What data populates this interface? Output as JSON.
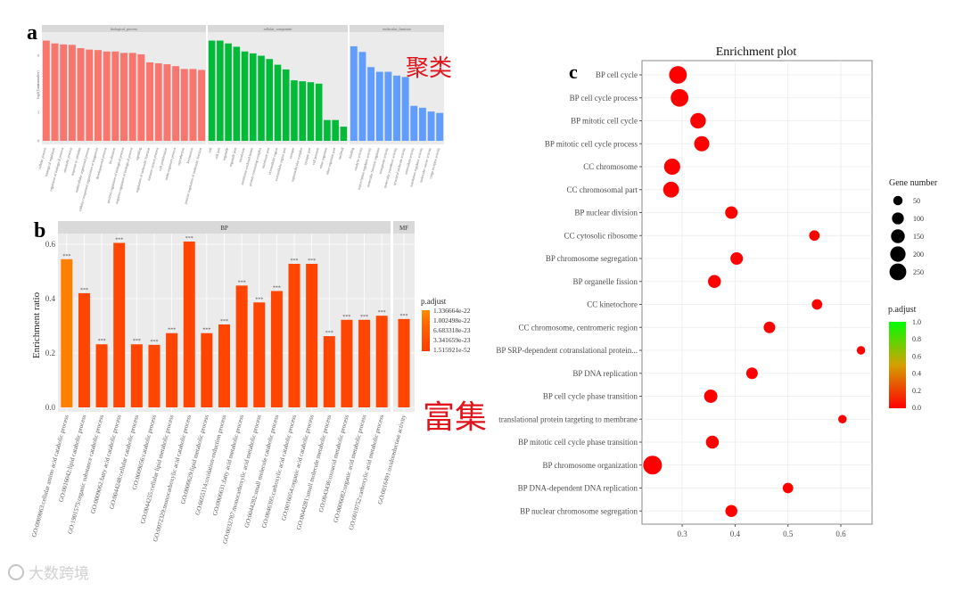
{
  "annotations": {
    "panel_a_letter": "a",
    "panel_b_letter": "b",
    "panel_c_letter": "c",
    "cluster_label": "聚类",
    "enrichment_label": "富集",
    "watermark": "大数跨境"
  },
  "chart_data": [
    {
      "type": "bar",
      "panel": "a",
      "title": "",
      "xlabel": "",
      "ylabel": "log2(Gene number)",
      "yticks": [
        0,
        3,
        6,
        9
      ],
      "ylim": [
        0,
        11.5
      ],
      "facets": [
        {
          "name": "biological_process",
          "color": "#f8766d",
          "categories": [
            "cellular process",
            "biological regulation",
            "regulation of biological process",
            "metabolic process",
            "response to stimulus",
            "multicellular organismal process",
            "cellular component organization or biogenesis",
            "developmental process",
            "localization",
            "positive regulation of biological process",
            "negative regulation of biological process",
            "signaling",
            "regulation of molecular function",
            "immune system process",
            "cell proliferation",
            "multi-organism process",
            "reproduction",
            "locomotion",
            "positive regulation of molecular function"
          ],
          "values": [
            10.6,
            10.3,
            10.2,
            10.15,
            9.8,
            9.65,
            9.6,
            9.45,
            9.45,
            9.3,
            9.3,
            9.15,
            8.3,
            8.2,
            8.1,
            7.9,
            7.6,
            7.6,
            7.5
          ]
        },
        {
          "name": "cellular_component",
          "color": "#00ba38",
          "categories": [
            "cell",
            "cell part",
            "organelle",
            "organelle part",
            "membrane",
            "membrane-enclosed lumen",
            "protein-containing complex",
            "membrane part",
            "extracellular region",
            "extracellular region part",
            "synapse",
            "supramolecular complex",
            "synapse part",
            "cell junction",
            "other organism",
            "other organism part",
            "nucleoid"
          ],
          "values": [
            10.6,
            10.6,
            10.3,
            9.95,
            9.45,
            9.25,
            9.0,
            8.65,
            8.05,
            7.55,
            6.4,
            6.3,
            6.2,
            6.05,
            2.2,
            2.2,
            1.5
          ]
        },
        {
          "name": "molecular_function",
          "color": "#619cff",
          "categories": [
            "binding",
            "catalytic activity",
            "transcription regulator activity",
            "molecular function regulator",
            "transporter activity",
            "molecular transducer activity",
            "structural molecule activity",
            "antioxidant activity",
            "translation regulator activity",
            "molecular carrier activity",
            "cargo receptor activity"
          ],
          "values": [
            10.0,
            9.4,
            7.8,
            7.3,
            7.3,
            6.9,
            6.75,
            3.7,
            3.5,
            3.1,
            2.95
          ]
        }
      ]
    },
    {
      "type": "bar",
      "panel": "b",
      "title": "",
      "xlabel": "",
      "ylabel": "Enrichment ratio",
      "yticks": [
        0.0,
        0.2,
        0.4,
        0.6
      ],
      "ylim": [
        0,
        0.64
      ],
      "bar_label": "***",
      "legend": {
        "title": "p.adjust",
        "position": "right",
        "labels": [
          "1.336664e-22",
          "1.002498e-22",
          "6.683318e-23",
          "3.341659e-23",
          "1.515921e-52"
        ],
        "colors": [
          "#ff8c00",
          "#ff7000",
          "#ff5a00",
          "#ff4a00",
          "#ff3d00"
        ]
      },
      "facets": [
        {
          "name": "BP",
          "categories": [
            "GO:0009063:cellular amino acid catabolic process",
            "GO:0016042:lipid catabolic process",
            "GO:1901575:organic substance catabolic process",
            "GO:0009062:fatty acid catabolic process",
            "GO:0044248:cellular catabolic process",
            "GO:0009056:catabolic process",
            "GO:0044255:cellular lipid metabolic process",
            "GO:0072329:monocarboxylic acid catabolic process",
            "GO:0006629:lipid metabolic process",
            "GO:0055114:oxidation-reduction process",
            "GO:0006631:fatty acid metabolic process",
            "GO:0032787:monocarboxylic acid metabolic process",
            "GO:0044282:small molecule catabolic process",
            "GO:0046395:carboxylic acid catabolic process",
            "GO:0016054:organic acid catabolic process",
            "GO:0044281:small molecule metabolic process",
            "GO:0043436:oxoacid metabolic process",
            "GO:0006082:organic acid metabolic process",
            "GO:0019752:carboxylic acid metabolic process"
          ],
          "values": [
            0.545,
            0.42,
            0.232,
            0.605,
            0.232,
            0.23,
            0.273,
            0.61,
            0.273,
            0.305,
            0.448,
            0.386,
            0.428,
            0.528,
            0.528,
            0.262,
            0.322,
            0.322,
            0.337
          ],
          "colors": [
            "#ff8000",
            "#ff4500",
            "#ff4500",
            "#ff4500",
            "#ff4500",
            "#ff4500",
            "#ff4500",
            "#ff4500",
            "#ff4500",
            "#ff4500",
            "#ff4500",
            "#ff4500",
            "#ff4500",
            "#ff4500",
            "#ff4500",
            "#ff4500",
            "#ff4500",
            "#ff4500",
            "#ff4500"
          ]
        },
        {
          "name": "MF",
          "categories": [
            "GO:0016491:oxidoreductase activity"
          ],
          "values": [
            0.325
          ],
          "colors": [
            "#ff4500"
          ]
        }
      ]
    },
    {
      "type": "scatter",
      "panel": "c",
      "title": "Enrichment plot",
      "xlabel": "",
      "ylabel": "",
      "xticks": [
        0.3,
        0.4,
        0.5,
        0.6
      ],
      "xlim": [
        0.224,
        0.659
      ],
      "grid": true,
      "categories": [
        "BP cell cycle",
        "BP cell cycle process",
        "BP mitotic cell cycle",
        "BP mitotic cell cycle process",
        "CC chromosome",
        "CC chromosomal part",
        "BP nuclear division",
        "CC cytosolic ribosome",
        "BP chromosome segregation",
        "BP organelle fission",
        "CC kinetochore",
        "CC chromosome, centromeric region",
        "BP SRP-dependent cotranslational protein...",
        "BP DNA replication",
        "BP cell cycle phase transition",
        "translational protein targeting to membrane",
        "BP mitotic cell cycle phase transition",
        "BP chromosome organization",
        "BP DNA-dependent DNA replication",
        "BP nuclear chromosome segregation"
      ],
      "x": [
        0.292,
        0.295,
        0.33,
        0.337,
        0.281,
        0.279,
        0.393,
        0.55,
        0.403,
        0.361,
        0.555,
        0.465,
        0.638,
        0.432,
        0.354,
        0.603,
        0.357,
        0.244,
        0.5,
        0.393
      ],
      "gene_number": [
        250,
        250,
        180,
        170,
        200,
        190,
        100,
        60,
        100,
        110,
        60,
        80,
        30,
        80,
        120,
        30,
        110,
        290,
        60,
        90
      ],
      "p_adjust": [
        0,
        0,
        0,
        0,
        0,
        0,
        0,
        0,
        0,
        0,
        0,
        0,
        0,
        0,
        0,
        0,
        0,
        0,
        0,
        0
      ],
      "point_color": "#ff0000",
      "size_legend": {
        "title": "Gene number",
        "values": [
          50,
          100,
          150,
          200,
          250
        ],
        "labels": [
          "50",
          "100",
          "150",
          "200",
          "250"
        ]
      },
      "color_legend": {
        "title": "p.adjust",
        "labels": [
          "1.0",
          "0.8",
          "0.6",
          "0.4",
          "0.2",
          "0.0"
        ],
        "low": "#ff0000",
        "high": "#00ff00"
      }
    }
  ]
}
